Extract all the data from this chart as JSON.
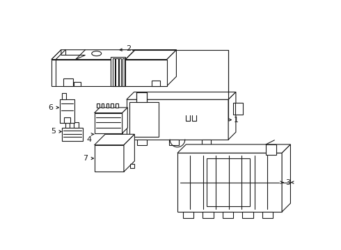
{
  "bg_color": "#ffffff",
  "line_color": "#1a1a1a",
  "line_width": 0.8,
  "figsize": [
    4.9,
    3.6
  ],
  "dpi": 100
}
